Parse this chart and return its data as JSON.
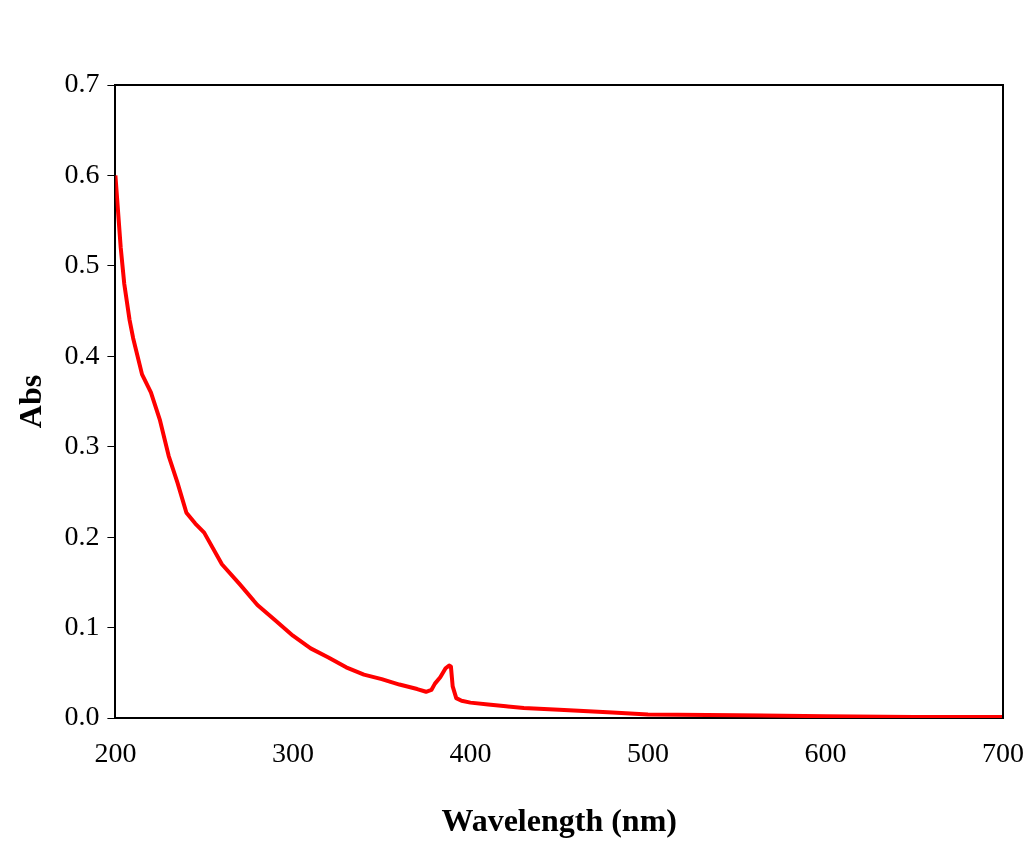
{
  "chart_data": {
    "type": "line",
    "xlabel": "Wavelength (nm)",
    "ylabel": "Abs",
    "x": [
      200,
      203,
      205,
      208,
      210,
      215,
      220,
      225,
      230,
      235,
      240,
      245,
      250,
      260,
      270,
      280,
      290,
      300,
      310,
      320,
      330,
      340,
      350,
      360,
      370,
      375,
      378,
      380,
      383,
      386,
      388,
      389,
      390,
      392,
      395,
      400,
      410,
      420,
      430,
      450,
      480,
      500,
      550,
      600,
      650,
      700
    ],
    "series": [
      {
        "color": "#ff0000",
        "values": [
          0.6,
          0.52,
          0.48,
          0.44,
          0.42,
          0.38,
          0.36,
          0.33,
          0.29,
          0.26,
          0.227,
          0.215,
          0.205,
          0.17,
          0.148,
          0.125,
          0.108,
          0.091,
          0.077,
          0.067,
          0.056,
          0.048,
          0.043,
          0.037,
          0.032,
          0.029,
          0.031,
          0.038,
          0.045,
          0.055,
          0.058,
          0.057,
          0.035,
          0.022,
          0.019,
          0.017,
          0.015,
          0.013,
          0.011,
          0.009,
          0.006,
          0.004,
          0.003,
          0.002,
          0.001,
          0.001
        ]
      }
    ],
    "xlim": [
      200,
      700
    ],
    "xticks": [
      200,
      300,
      400,
      500,
      600,
      700
    ],
    "ylim": [
      0,
      0.7
    ],
    "yticks": [
      {
        "value": 0,
        "label": "0.0"
      },
      {
        "value": 0.1,
        "label": "0.1"
      },
      {
        "value": 0.2,
        "label": "0.2"
      },
      {
        "value": 0.3,
        "label": "0.3"
      },
      {
        "value": 0.4,
        "label": "0.4"
      },
      {
        "value": 0.5,
        "label": "0.5"
      },
      {
        "value": 0.6,
        "label": "0.6"
      },
      {
        "value": 0.7,
        "label": "0.7"
      }
    ],
    "grid": false,
    "legend": false,
    "marker": "none",
    "line_style": "solid"
  }
}
